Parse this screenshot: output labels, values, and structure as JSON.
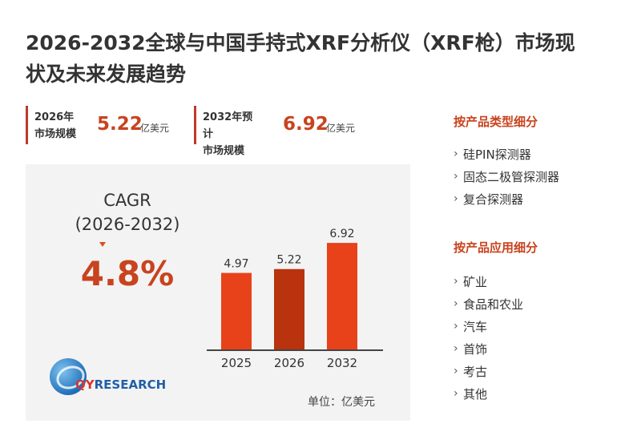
{
  "title": "2026-2032全球与中国手持式XRF分析仪（XRF枪）市场现状及未来发展趋势",
  "stats": [
    {
      "label": "2026年\n市场规模",
      "value": "5.22",
      "unit": "亿美元"
    },
    {
      "label": "2032年预计\n市场规模",
      "value": "6.92",
      "unit": "亿美元"
    }
  ],
  "cagr": {
    "label_line1": "CAGR",
    "label_line2": "(2026-2032)",
    "value": "4.8%"
  },
  "chart_data": {
    "type": "bar",
    "categories": [
      "2025",
      "2026",
      "2032"
    ],
    "values": [
      4.97,
      5.22,
      6.92
    ],
    "data_labels": [
      "4.97",
      "5.22",
      "6.92"
    ],
    "colors": [
      "#e8421a",
      "#b8330e",
      "#e8421a"
    ],
    "title": "",
    "xlabel": "",
    "ylabel": "",
    "ylim": [
      0,
      8
    ],
    "grid": false
  },
  "unit_note": "单位：亿美元",
  "logo": {
    "q": "QY",
    "rest": "RESEARCH"
  },
  "product_segments": {
    "heading": "按产品类型细分",
    "items": [
      "硅PIN探测器",
      "固态二极管探测器",
      "复合探测器"
    ]
  },
  "application_segments": {
    "heading": "按产品应用细分",
    "items": [
      "矿业",
      "食品和农业",
      "汽车",
      "首饰",
      "考古",
      "其他"
    ]
  },
  "bullet_glyph": "›"
}
